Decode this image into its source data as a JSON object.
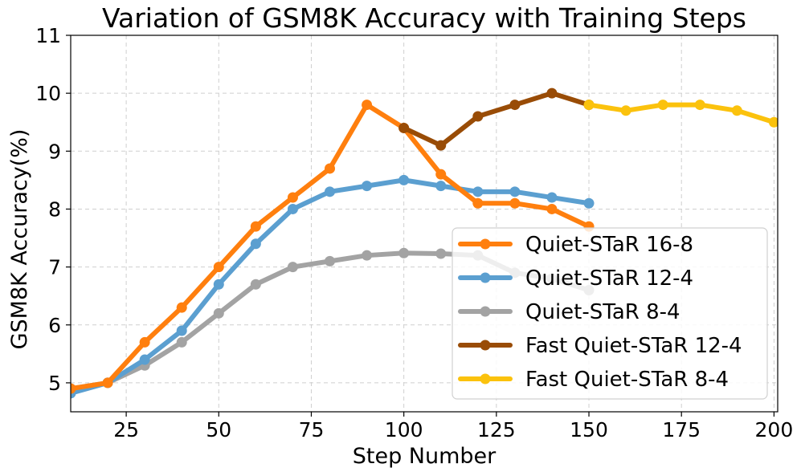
{
  "chart_data": {
    "type": "line",
    "title": "Variation of GSM8K Accuracy with Training Steps",
    "xlabel": "Step Number",
    "ylabel": "GSM8K Accuracy(%)",
    "xlim": [
      10,
      201
    ],
    "ylim": [
      4.5,
      11
    ],
    "xticks": [
      25,
      50,
      75,
      100,
      125,
      150,
      175,
      200
    ],
    "yticks": [
      5,
      6,
      7,
      8,
      9,
      10,
      11
    ],
    "grid": true,
    "legend_position": "lower-right",
    "series": [
      {
        "name": "Quiet-STaR 16-8",
        "color": "#ff7f0e",
        "x": [
          10,
          20,
          30,
          40,
          50,
          60,
          70,
          80,
          90,
          100,
          110,
          120,
          130,
          140,
          150
        ],
        "y": [
          4.9,
          5.0,
          5.7,
          6.3,
          7.0,
          7.7,
          8.2,
          8.7,
          9.8,
          9.4,
          8.6,
          8.1,
          8.1,
          8.0,
          7.7
        ]
      },
      {
        "name": "Quiet-STaR 12-4",
        "color": "#5b9fd0",
        "x": [
          10,
          20,
          30,
          40,
          50,
          60,
          70,
          80,
          90,
          100,
          110,
          120,
          130,
          140,
          150
        ],
        "y": [
          4.82,
          5.0,
          5.4,
          5.9,
          6.7,
          7.4,
          8.0,
          8.3,
          8.4,
          8.5,
          8.4,
          8.3,
          8.3,
          8.2,
          8.1
        ]
      },
      {
        "name": "Quiet-STaR 8-4",
        "color": "#a3a3a3",
        "x": [
          10,
          20,
          30,
          40,
          50,
          60,
          70,
          80,
          90,
          100,
          110,
          120,
          130,
          140,
          150
        ],
        "y": [
          4.9,
          5.0,
          5.3,
          5.7,
          6.2,
          6.7,
          7.0,
          7.1,
          7.2,
          7.24,
          7.23,
          7.2,
          6.9,
          6.8,
          6.6
        ]
      },
      {
        "name": "Fast Quiet-STaR 12-4",
        "color": "#994c06",
        "x": [
          100,
          110,
          120,
          130,
          140,
          150
        ],
        "y": [
          9.4,
          9.1,
          9.6,
          9.8,
          10.0,
          9.8
        ]
      },
      {
        "name": "Fast Quiet-STaR 8-4",
        "color": "#fbc20d",
        "x": [
          150,
          160,
          170,
          180,
          190,
          200
        ],
        "y": [
          9.8,
          9.7,
          9.8,
          9.8,
          9.7,
          9.5
        ]
      }
    ]
  }
}
